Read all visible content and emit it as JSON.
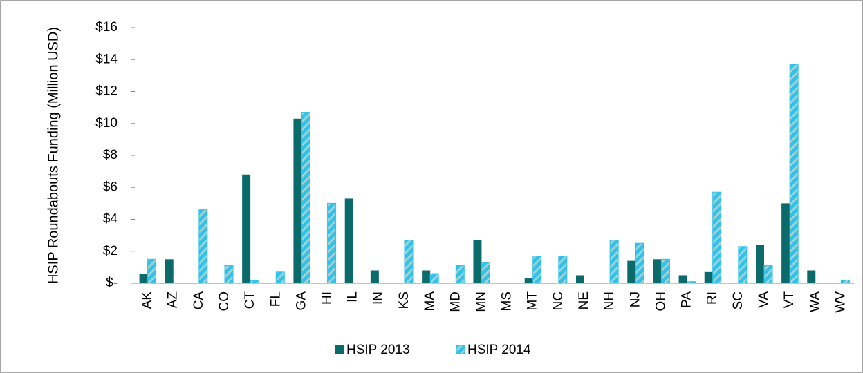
{
  "chart_data": {
    "type": "bar",
    "y_label": "HSIP Roundabouts Funding (Million USD)",
    "categories": [
      "AK",
      "AZ",
      "CA",
      "CO",
      "CT",
      "FL",
      "GA",
      "HI",
      "IL",
      "IN",
      "KS",
      "MA",
      "MD",
      "MN",
      "MS",
      "MT",
      "NC",
      "NE",
      "NH",
      "NJ",
      "OH",
      "PA",
      "RI",
      "SC",
      "VA",
      "VT",
      "WA",
      "WV"
    ],
    "series": [
      {
        "name": "HSIP 2013",
        "color": "#0b6b6b",
        "values": [
          0.6,
          1.5,
          0,
          0,
          6.8,
          0,
          10.3,
          0,
          5.3,
          0.8,
          0,
          0.8,
          0,
          2.7,
          0,
          0.3,
          0,
          0.5,
          0,
          1.4,
          1.5,
          0.5,
          0.7,
          0,
          2.4,
          5.0,
          0.8,
          0
        ]
      },
      {
        "name": "HSIP 2014",
        "color": "#33c1e8",
        "values": [
          1.5,
          0,
          4.6,
          1.1,
          0.15,
          0.7,
          10.7,
          5.0,
          0,
          0,
          2.7,
          0.6,
          1.1,
          1.3,
          0,
          1.7,
          1.7,
          0,
          2.7,
          2.5,
          1.5,
          0.1,
          5.7,
          2.3,
          1.1,
          13.7,
          0,
          0.2
        ]
      }
    ],
    "ylim": [
      0,
      16
    ],
    "yticks": [
      {
        "value": 0,
        "label": "$-"
      },
      {
        "value": 2,
        "label": "$2"
      },
      {
        "value": 4,
        "label": "$4"
      },
      {
        "value": 6,
        "label": "$6"
      },
      {
        "value": 8,
        "label": "$8"
      },
      {
        "value": 10,
        "label": "$10"
      },
      {
        "value": 12,
        "label": "$12"
      },
      {
        "value": 14,
        "label": "$14"
      },
      {
        "value": 16,
        "label": "$16"
      }
    ],
    "grid": false,
    "legend": "bottom"
  }
}
